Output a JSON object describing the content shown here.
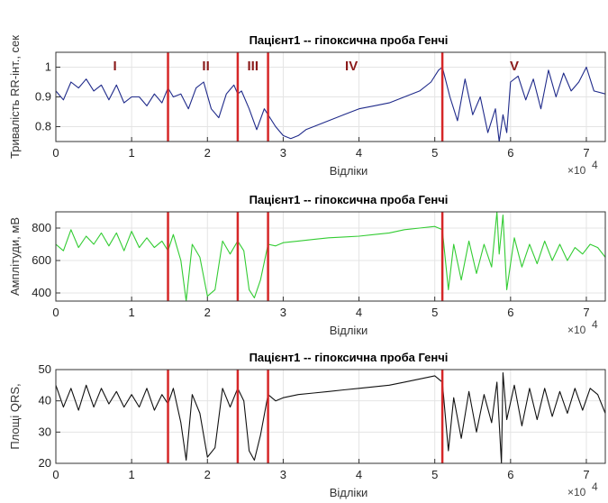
{
  "chart_data": [
    {
      "type": "line",
      "title": "Пацієнт1 -- гіпоксична проба Генчі",
      "xlabel": "Відліки",
      "ylabel": "Тривалість RR-інт., сек",
      "x_exponent": "×10",
      "x_exponent_power": "4",
      "xlim": [
        0,
        7.25
      ],
      "ylim": [
        0.75,
        1.05
      ],
      "x_ticks": [
        "0",
        "1",
        "2",
        "3",
        "4",
        "5",
        "6",
        "7"
      ],
      "y_ticks": [
        "0.8",
        "0.9",
        "1"
      ],
      "line_color": "#1f2a8a",
      "marker_color": "#d62728",
      "markers": [
        1.48,
        2.4,
        2.8,
        5.1
      ],
      "phase_labels": [
        {
          "text": "I",
          "x": 0.78
        },
        {
          "text": "II",
          "x": 1.98
        },
        {
          "text": "III",
          "x": 2.6
        },
        {
          "text": "IV",
          "x": 3.9
        },
        {
          "text": "V",
          "x": 6.05
        }
      ],
      "series": [
        {
          "x": [
            0,
            0.1,
            0.2,
            0.3,
            0.4,
            0.5,
            0.6,
            0.7,
            0.8,
            0.9,
            1.0,
            1.1,
            1.2,
            1.3,
            1.4,
            1.48,
            1.55,
            1.65,
            1.75,
            1.85,
            1.95,
            2.05,
            2.15,
            2.25,
            2.35,
            2.4,
            2.45,
            2.55,
            2.65,
            2.75,
            2.8,
            2.9,
            3.0,
            3.1,
            3.2,
            3.3,
            3.4,
            3.6,
            3.8,
            4.0,
            4.2,
            4.4,
            4.6,
            4.8,
            4.95,
            5.05,
            5.1,
            5.2,
            5.3,
            5.4,
            5.5,
            5.6,
            5.7,
            5.8,
            5.85,
            5.9,
            5.95,
            6.0,
            6.1,
            6.2,
            6.3,
            6.4,
            6.5,
            6.6,
            6.7,
            6.8,
            6.9,
            7.0,
            7.1,
            7.25
          ],
          "values": [
            0.92,
            0.89,
            0.95,
            0.93,
            0.96,
            0.92,
            0.94,
            0.89,
            0.94,
            0.88,
            0.9,
            0.9,
            0.87,
            0.91,
            0.88,
            0.93,
            0.9,
            0.91,
            0.86,
            0.93,
            0.95,
            0.86,
            0.83,
            0.91,
            0.94,
            0.91,
            0.92,
            0.86,
            0.79,
            0.86,
            0.84,
            0.8,
            0.77,
            0.76,
            0.77,
            0.79,
            0.8,
            0.82,
            0.84,
            0.86,
            0.87,
            0.88,
            0.9,
            0.92,
            0.95,
            0.99,
            1.0,
            0.9,
            0.82,
            0.96,
            0.84,
            0.9,
            0.78,
            0.86,
            0.75,
            0.84,
            0.78,
            0.95,
            0.97,
            0.89,
            0.96,
            0.86,
            0.99,
            0.9,
            0.98,
            0.92,
            0.95,
            1.0,
            0.92,
            0.91
          ]
        }
      ]
    },
    {
      "type": "line",
      "title": "Пацієнт1 -- гіпоксична проба Генчі",
      "xlabel": "Відліки",
      "ylabel": "Амплітуди, мВ",
      "x_exponent": "×10",
      "x_exponent_power": "4",
      "xlim": [
        0,
        7.25
      ],
      "ylim": [
        350,
        900
      ],
      "x_ticks": [
        "0",
        "1",
        "2",
        "3",
        "4",
        "5",
        "6",
        "7"
      ],
      "y_ticks": [
        "400",
        "600",
        "800"
      ],
      "line_color": "#33cc33",
      "marker_color": "#d62728",
      "markers": [
        1.48,
        2.4,
        2.8,
        5.1
      ],
      "series": [
        {
          "x": [
            0,
            0.1,
            0.2,
            0.3,
            0.4,
            0.5,
            0.6,
            0.7,
            0.8,
            0.9,
            1.0,
            1.1,
            1.2,
            1.3,
            1.4,
            1.48,
            1.55,
            1.65,
            1.72,
            1.8,
            1.9,
            2.0,
            2.1,
            2.2,
            2.3,
            2.4,
            2.48,
            2.55,
            2.62,
            2.7,
            2.8,
            2.9,
            3.0,
            3.2,
            3.4,
            3.6,
            3.8,
            4.0,
            4.2,
            4.4,
            4.6,
            4.8,
            5.0,
            5.1,
            5.18,
            5.25,
            5.35,
            5.45,
            5.55,
            5.65,
            5.75,
            5.82,
            5.85,
            5.9,
            5.95,
            6.05,
            6.15,
            6.25,
            6.35,
            6.45,
            6.55,
            6.65,
            6.75,
            6.85,
            6.95,
            7.05,
            7.15,
            7.25
          ],
          "values": [
            700,
            660,
            790,
            680,
            750,
            700,
            770,
            690,
            770,
            660,
            780,
            680,
            740,
            680,
            720,
            660,
            760,
            600,
            350,
            700,
            620,
            380,
            420,
            720,
            640,
            720,
            660,
            420,
            370,
            480,
            700,
            690,
            710,
            720,
            730,
            740,
            745,
            750,
            760,
            770,
            790,
            800,
            810,
            790,
            420,
            700,
            480,
            720,
            520,
            700,
            560,
            900,
            640,
            880,
            420,
            740,
            560,
            700,
            580,
            720,
            600,
            700,
            600,
            680,
            640,
            700,
            680,
            620
          ]
        }
      ]
    },
    {
      "type": "line",
      "title": "Пацієнт1 -- гіпоксична проба Генчі",
      "xlabel": "Відліки",
      "ylabel": "Площі QRS,",
      "x_exponent": "×10",
      "x_exponent_power": "4",
      "xlim": [
        0,
        7.25
      ],
      "ylim": [
        20,
        50
      ],
      "x_ticks": [
        "0",
        "1",
        "2",
        "3",
        "4",
        "5",
        "6",
        "7"
      ],
      "y_ticks": [
        "20",
        "30",
        "40",
        "50"
      ],
      "line_color": "#111111",
      "marker_color": "#d62728",
      "markers": [
        1.48,
        2.4,
        2.8,
        5.1
      ],
      "series": [
        {
          "x": [
            0,
            0.1,
            0.2,
            0.3,
            0.4,
            0.5,
            0.6,
            0.7,
            0.8,
            0.9,
            1.0,
            1.1,
            1.2,
            1.3,
            1.4,
            1.48,
            1.55,
            1.65,
            1.72,
            1.8,
            1.9,
            2.0,
            2.1,
            2.2,
            2.3,
            2.4,
            2.48,
            2.55,
            2.62,
            2.7,
            2.8,
            2.9,
            3.0,
            3.2,
            3.4,
            3.6,
            3.8,
            4.0,
            4.2,
            4.4,
            4.6,
            4.8,
            5.0,
            5.1,
            5.18,
            5.25,
            5.35,
            5.45,
            5.55,
            5.65,
            5.75,
            5.82,
            5.88,
            5.9,
            5.95,
            6.05,
            6.15,
            6.25,
            6.35,
            6.45,
            6.55,
            6.65,
            6.75,
            6.85,
            6.95,
            7.05,
            7.15,
            7.25
          ],
          "values": [
            45,
            38,
            44,
            37,
            45,
            38,
            44,
            39,
            43,
            38,
            42,
            38,
            44,
            37,
            42,
            39,
            44,
            33,
            21,
            42,
            36,
            22,
            25,
            44,
            38,
            44,
            40,
            24,
            21,
            29,
            42,
            40,
            41,
            42,
            42.5,
            43,
            43.5,
            44,
            44.5,
            45,
            46,
            47,
            48,
            46,
            24,
            41,
            28,
            43,
            30,
            42,
            33,
            46,
            20,
            49,
            34,
            45,
            32,
            44,
            34,
            44,
            35,
            43,
            36,
            44,
            37,
            44,
            42,
            36
          ]
        }
      ]
    }
  ]
}
